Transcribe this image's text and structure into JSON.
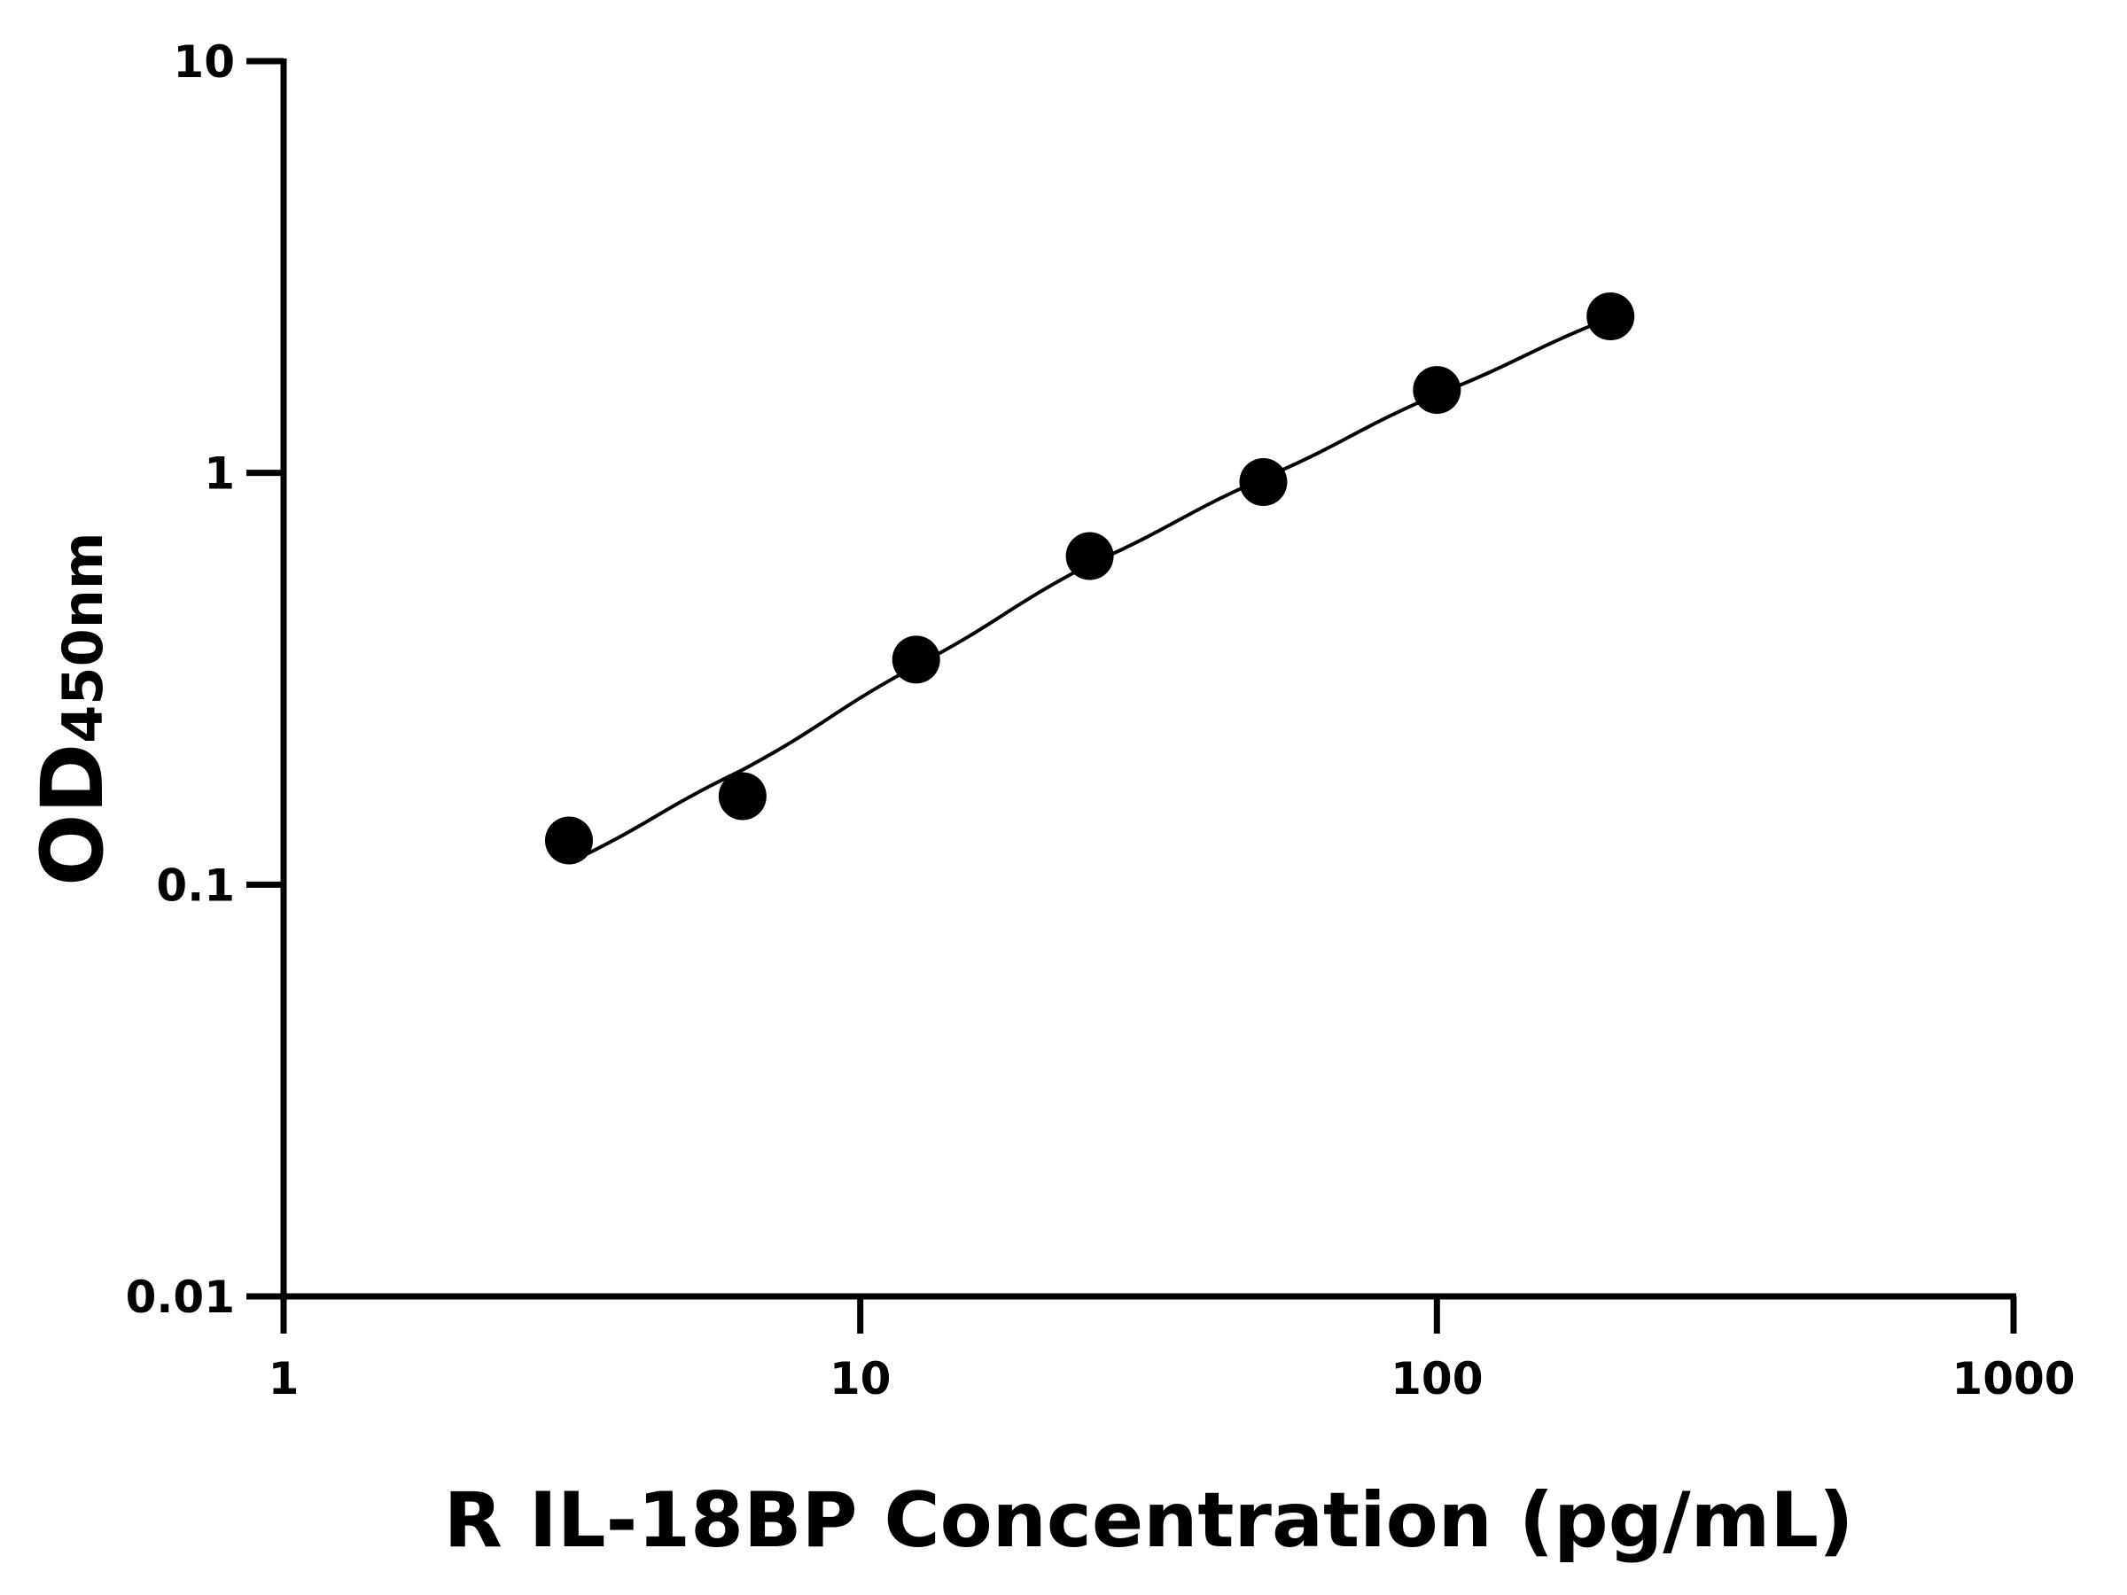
{
  "chart_data": {
    "type": "scatter",
    "xlabel": "R IL-18BP Concentration (pg/mL)",
    "ylabel_main": "OD",
    "ylabel_sub": "450nm",
    "x_scale": "log",
    "y_scale": "log",
    "xlim": [
      1,
      1000
    ],
    "ylim": [
      0.01,
      10
    ],
    "x_ticks": [
      "1",
      "10",
      "100",
      "1000"
    ],
    "y_ticks": [
      "0.01",
      "0.1",
      "1",
      "10"
    ],
    "grid": false,
    "points": {
      "x": [
        3.125,
        6.25,
        12.5,
        25,
        50,
        100,
        200
      ],
      "y": [
        0.128,
        0.164,
        0.352,
        0.628,
        0.95,
        1.59,
        2.4
      ]
    },
    "fit_curve": {
      "x": [
        3.125,
        6.25,
        12.5,
        25,
        50,
        100,
        200
      ],
      "y": [
        0.113,
        0.19,
        0.34,
        0.6,
        0.97,
        1.55,
        2.38
      ]
    },
    "colors": {
      "points": "#000000",
      "line": "#000000",
      "axes": "#000000"
    }
  }
}
